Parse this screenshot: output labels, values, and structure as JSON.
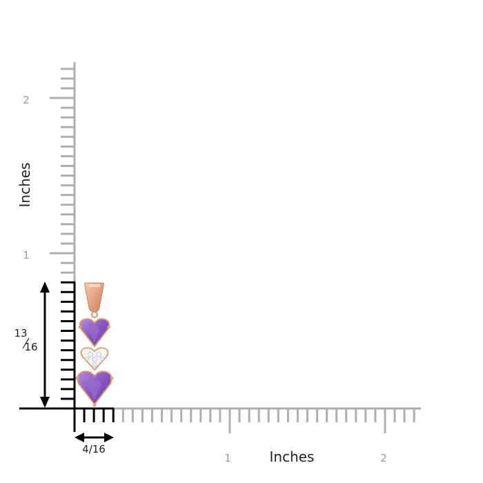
{
  "y_axis": {
    "label": "Inches",
    "tick_labels": [
      "2",
      "1"
    ]
  },
  "x_axis": {
    "label": "Inches",
    "tick_labels": [
      "1",
      "2"
    ]
  },
  "dimensions": {
    "height": {
      "numerator": "13",
      "denominator": "16"
    },
    "width": "4/16"
  },
  "product": {
    "image": "amethyst-heart-three-stone-pendant",
    "metal": "rose-gold",
    "metal_color": "#e8a98a",
    "gem_color": "#8a5cc0",
    "diamond_color": "#f4f2f8"
  },
  "colors": {
    "ruler_gray": "#aeaeae",
    "ruler_black": "#000000",
    "label_gray": "#9a9a9a",
    "label_dark": "#222222"
  }
}
